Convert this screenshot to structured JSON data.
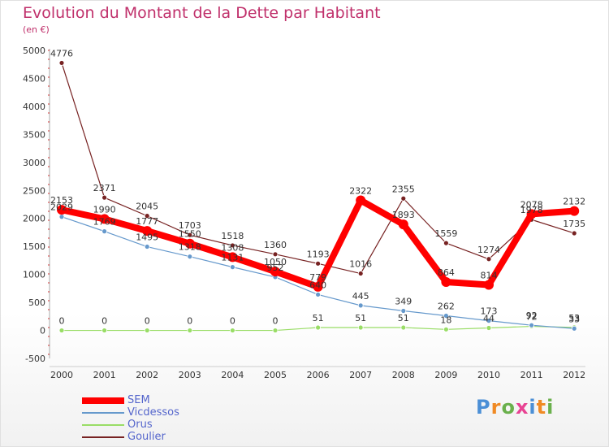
{
  "header": {
    "title": "Evolution du Montant de la Dette par Habitant",
    "subtitle": "(en €)"
  },
  "brand": {
    "text": "Proxiti",
    "letter_colors": [
      "#4b8fd6",
      "#f08a24",
      "#6ab04c",
      "#e84393",
      "#4b8fd6",
      "#f08a24",
      "#6ab04c"
    ]
  },
  "chart_data": {
    "type": "line",
    "title": "Evolution du Montant de la Dette par Habitant",
    "subtitle": "(en €)",
    "x": [
      "2000",
      "2001",
      "2002",
      "2003",
      "2004",
      "2005",
      "2006",
      "2007",
      "2008",
      "2009",
      "2010",
      "2011",
      "2012"
    ],
    "ylim": [
      -500,
      5000
    ],
    "yticks": [
      "-500",
      "0",
      "500",
      "1000",
      "1500",
      "2000",
      "2500",
      "3000",
      "3500",
      "4000",
      "4500",
      "5000"
    ],
    "grid": false,
    "legend_position": "bottom-left",
    "series": [
      {
        "name": "SEM",
        "color": "#ff0000",
        "values": [
          2153,
          1990,
          1777,
          1550,
          1308,
          1050,
          779,
          2322,
          1893,
          864,
          814,
          2078,
          2132
        ],
        "labels": [
          "2153",
          "1990",
          "1777",
          "1550",
          "1308",
          "1050",
          "779",
          "2322",
          "1893",
          "864",
          "814",
          "2078",
          "2132"
        ]
      },
      {
        "name": "Vicdessos",
        "color": "#6699cc",
        "values": [
          2029,
          1769,
          1495,
          1318,
          1131,
          952,
          640,
          445,
          349,
          262,
          173,
          92,
          33
        ],
        "labels": [
          "2029",
          "1769",
          "1495",
          "1318",
          "1131",
          "952",
          "640",
          "445",
          "349",
          "262",
          "173",
          "92",
          "33"
        ]
      },
      {
        "name": "Orus",
        "color": "#99dd66",
        "values": [
          0,
          0,
          0,
          0,
          0,
          0,
          51,
          51,
          51,
          18,
          44,
          72,
          53
        ],
        "labels": [
          "0",
          "0",
          "0",
          "0",
          "0",
          "0",
          "51",
          "51",
          "51",
          "18",
          "44",
          "72",
          "53"
        ]
      },
      {
        "name": "Goulier",
        "color": "#772222",
        "values": [
          4776,
          2371,
          2045,
          1703,
          1518,
          1360,
          1193,
          1016,
          2355,
          1559,
          1274,
          1978,
          1735
        ],
        "labels": [
          "4776",
          "2371",
          "2045",
          "1703",
          "1518",
          "1360",
          "1193",
          "1016",
          "2355",
          "1559",
          "1274",
          "1978",
          "1735"
        ]
      }
    ]
  }
}
